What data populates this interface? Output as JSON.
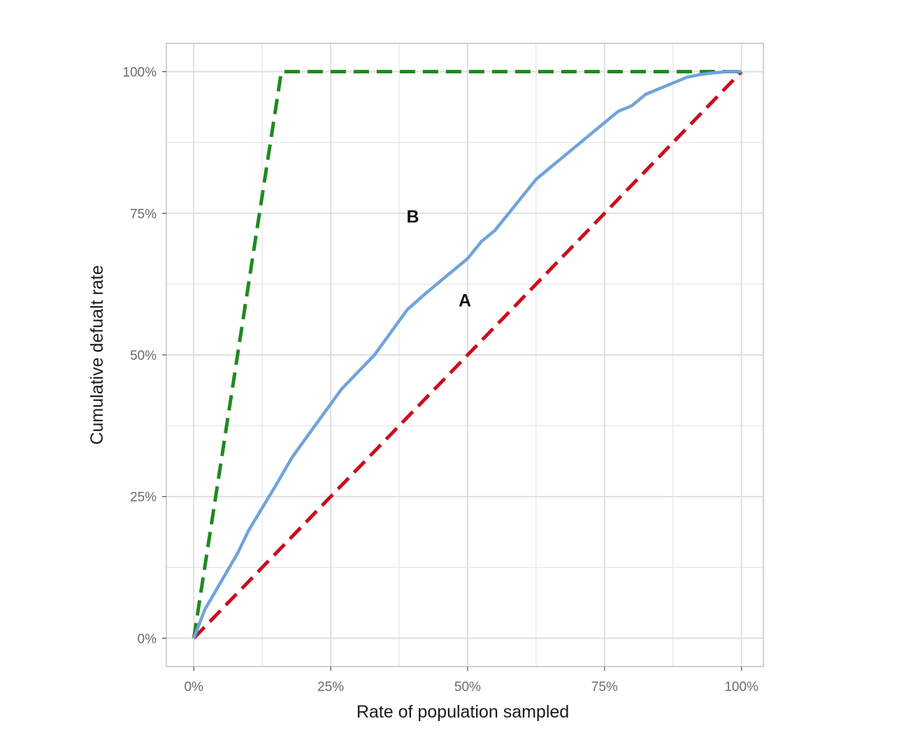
{
  "chart_data": {
    "type": "line",
    "title": "",
    "xlabel": "Rate of population sampled",
    "ylabel": "Cumulative defualt rate",
    "xlim": [
      -0.1,
      2.08
    ],
    "ylim": [
      -0.05,
      1.05
    ],
    "x_ticks": [
      0,
      0.5,
      1,
      1.5,
      2
    ],
    "x_tick_labels": [
      "0%",
      "25%",
      "50%",
      "75%",
      "100%"
    ],
    "y_ticks": [
      0,
      0.25,
      0.5,
      0.75,
      1
    ],
    "y_tick_labels": [
      "0%",
      "25%",
      "50%",
      "75%",
      "100%"
    ],
    "x_minor_grid": [
      0.25,
      0.75,
      1.25,
      1.75
    ],
    "y_minor_grid": [
      0.125,
      0.375,
      0.625,
      0.875
    ],
    "grid": true,
    "legend": "none",
    "series": [
      {
        "color": "#1f8a1f",
        "style": "dashed",
        "x": [
          0,
          0.32,
          2.0
        ],
        "y": [
          0,
          1,
          1
        ]
      },
      {
        "color": "#cc0c1e",
        "style": "dashed",
        "x": [
          0,
          2.0
        ],
        "y": [
          0,
          1
        ]
      },
      {
        "color": "#6fa3dc",
        "style": "solid",
        "x": [
          0,
          0.04,
          0.1,
          0.16,
          0.2,
          0.25,
          0.3,
          0.36,
          0.42,
          0.48,
          0.54,
          0.6,
          0.66,
          0.72,
          0.78,
          0.85,
          0.9,
          0.95,
          1.0,
          1.05,
          1.1,
          1.15,
          1.2,
          1.25,
          1.3,
          1.35,
          1.4,
          1.45,
          1.5,
          1.55,
          1.6,
          1.65,
          1.7,
          1.75,
          1.8,
          1.85,
          1.9,
          1.95,
          2.0
        ],
        "y": [
          0,
          0.05,
          0.1,
          0.15,
          0.19,
          0.23,
          0.27,
          0.32,
          0.36,
          0.4,
          0.44,
          0.47,
          0.5,
          0.54,
          0.58,
          0.61,
          0.63,
          0.65,
          0.67,
          0.7,
          0.72,
          0.75,
          0.78,
          0.81,
          0.83,
          0.85,
          0.87,
          0.89,
          0.91,
          0.93,
          0.94,
          0.96,
          0.97,
          0.98,
          0.99,
          0.995,
          0.998,
          1.0,
          1.0
        ]
      }
    ],
    "annotations": [
      {
        "text": "B",
        "x": 0.8,
        "y": 0.745
      },
      {
        "text": "A",
        "x": 0.99,
        "y": 0.597
      }
    ]
  }
}
